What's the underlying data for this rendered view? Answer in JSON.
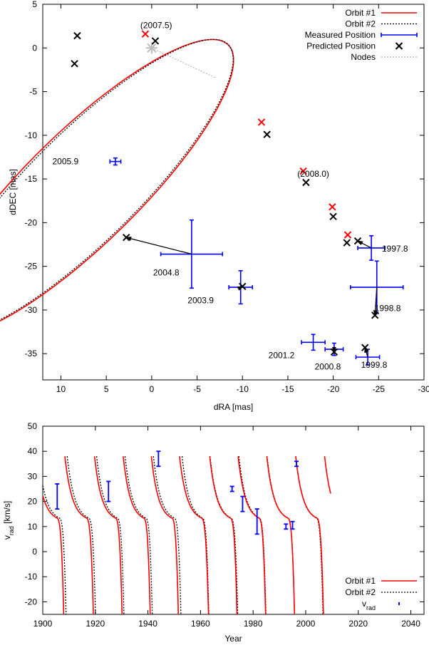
{
  "chart_data": [
    {
      "type": "line",
      "xlabel": "dRA [mas]",
      "ylabel": "dDEC [mas]",
      "xlim": [
        12,
        -30
      ],
      "ylim": [
        -38,
        5
      ],
      "xticks": [
        10,
        5,
        0,
        -5,
        -10,
        -15,
        -20,
        -25,
        -30
      ],
      "xtick_labels": [
        "10",
        "5",
        "0",
        "-5",
        "-10",
        "-15",
        "-20",
        "-25",
        "-30"
      ],
      "yticks": [
        5,
        0,
        -5,
        -10,
        -15,
        -20,
        -25,
        -30,
        -35
      ],
      "ytick_labels": [
        "5",
        "0",
        "-5",
        "-10",
        "-15",
        "-20",
        "-25",
        "-30",
        "-35"
      ],
      "legend_position": "top-right",
      "legend": [
        {
          "label": "Orbit #1",
          "style": "solid",
          "color": "#ff0000"
        },
        {
          "label": "Orbit #2",
          "style": "dotted",
          "color": "#000000"
        },
        {
          "label": "Measured Position",
          "style": "errorbar",
          "color": "#0000ff"
        },
        {
          "label": "Predicted Position",
          "style": "x-marker",
          "color": "#000000"
        },
        {
          "label": "Nodes",
          "style": "dotted",
          "color": "#aaaaaa"
        }
      ],
      "orbit1_ellipse": {
        "center": [
          7.6,
          -16.0
        ],
        "semi_major": 22.9,
        "semi_minor": 6.3,
        "angle_deg": -45.7
      },
      "orbit2_ellipse": {
        "center": [
          7.45,
          -15.9
        ],
        "semi_major": 22.75,
        "semi_minor": 6.1,
        "angle_deg": -45.9
      },
      "nodes_line": [
        [
          0.0,
          0.0
        ],
        [
          -7.0,
          -3.4
        ]
      ],
      "measured_positions": [
        {
          "label": "1997.8",
          "x": -24.2,
          "y": -22.9,
          "xerr": 1.5,
          "yerr": 1.4
        },
        {
          "label": "1998.8",
          "x": -24.8,
          "y": -27.4,
          "xerr": 2.9,
          "yerr": 3.0
        },
        {
          "label": "1999.8",
          "x": -23.8,
          "y": -35.4,
          "xerr": 1.3,
          "yerr": 0.9
        },
        {
          "label": "2000.8",
          "x": -20.1,
          "y": -34.5,
          "xerr": 1.0,
          "yerr": 0.7
        },
        {
          "label": "2001.2",
          "x": -17.8,
          "y": -33.7,
          "xerr": 1.3,
          "yerr": 0.9
        },
        {
          "label": "2003.9",
          "x": -9.8,
          "y": -27.4,
          "xerr": 1.3,
          "yerr": 1.9
        },
        {
          "label": "2004.8",
          "x": -4.4,
          "y": -23.6,
          "xerr": 3.4,
          "yerr": 3.9
        },
        {
          "label": "2005.9",
          "x": 4.0,
          "y": -13.0,
          "xerr": 0.6,
          "yerr": 0.4
        }
      ],
      "predicted_black": [
        {
          "x": -22.7,
          "y": -22.1
        },
        {
          "x": -24.6,
          "y": -30.6
        },
        {
          "x": -23.5,
          "y": -34.3
        },
        {
          "x": -20.1,
          "y": -34.8
        },
        {
          "x": -10.0,
          "y": -27.3
        },
        {
          "x": 2.8,
          "y": -21.7
        },
        {
          "x": 8.5,
          "y": -1.8
        },
        {
          "x": 8.2,
          "y": 1.4
        },
        {
          "x": -0.4,
          "y": 0.8
        },
        {
          "x": -12.7,
          "y": -9.9
        },
        {
          "x": -17.0,
          "y": -15.4
        },
        {
          "x": -20.0,
          "y": -19.3
        },
        {
          "x": -21.5,
          "y": -22.3
        }
      ],
      "predicted_red": [
        {
          "x": 0.7,
          "y": 1.6
        },
        {
          "x": -12.1,
          "y": -8.5
        },
        {
          "x": -16.7,
          "y": -14.1
        },
        {
          "x": -19.9,
          "y": -18.2
        },
        {
          "x": -21.6,
          "y": -21.4
        }
      ],
      "annotations": [
        {
          "text": "1997.8",
          "x": -26.8,
          "y": -23.0
        },
        {
          "text": "1998.8",
          "x": -26.0,
          "y": -29.8
        },
        {
          "text": "1999.8",
          "x": -24.5,
          "y": -36.3
        },
        {
          "text": "2000.8",
          "x": -19.4,
          "y": -36.5
        },
        {
          "text": "2001.2",
          "x": -14.3,
          "y": -35.2
        },
        {
          "text": "2003.9",
          "x": -5.4,
          "y": -28.9
        },
        {
          "text": "2004.8",
          "x": -1.6,
          "y": -25.7
        },
        {
          "text": "2005.9",
          "x": 9.5,
          "y": -13.0
        },
        {
          "text": "(2007.5)",
          "x": -0.5,
          "y": 2.6
        },
        {
          "text": "(2008.0)",
          "x": -17.8,
          "y": -14.4
        }
      ]
    },
    {
      "type": "line",
      "xlabel": "Year",
      "ylabel": "vrad [km/s]",
      "ylabel_main": "v",
      "ylabel_sub": "rad",
      "ylabel_unit": " [km/s]",
      "xlim": [
        1900,
        2045
      ],
      "ylim": [
        -25,
        50
      ],
      "xticks": [
        1900,
        1920,
        1940,
        1960,
        1980,
        2000,
        2020,
        2040
      ],
      "xtick_labels": [
        "1900",
        "1920",
        "1940",
        "1960",
        "1980",
        "2000",
        "2020",
        "2040"
      ],
      "yticks": [
        -20,
        -10,
        0,
        10,
        20,
        30,
        40,
        50
      ],
      "ytick_labels": [
        "-20",
        "-10",
        "0",
        "10",
        "20",
        "30",
        "40",
        "50"
      ],
      "legend_position": "bottom-right",
      "legend": [
        {
          "label": "Orbit #1",
          "style": "solid",
          "color": "#ff0000"
        },
        {
          "label": "Orbit #2",
          "style": "dotted",
          "color": "#000000"
        },
        {
          "label": "vrad",
          "label_main": "v",
          "label_sub": "rad",
          "style": "errorbar",
          "color": "#0000ff"
        }
      ],
      "orbit1_periastron_years": [
        1908.4,
        1919.7,
        1930.6,
        1941.3,
        1952.0,
        1963.5,
        1974.3,
        1985.2,
        1996.2,
        2007.2
      ],
      "orbit1_end_year": 2009.5,
      "orbit1_period_yr": 10.9,
      "orbit2_periastron_years": [
        1909.3,
        1920.5,
        1931.3,
        1942.1,
        1953.0,
        1963.6,
        1974.6,
        1985.3,
        1996.2,
        2007.0
      ],
      "radial_velocities": [
        {
          "year": 1905.5,
          "v": 22.0,
          "err": 5.0
        },
        {
          "year": 1925.0,
          "v": 24.0,
          "err": 4.0
        },
        {
          "year": 1944.0,
          "v": 37.0,
          "err": 3.0
        },
        {
          "year": 1972.0,
          "v": 25.0,
          "err": 1.0
        },
        {
          "year": 1976.0,
          "v": 19.0,
          "err": 3.0
        },
        {
          "year": 1981.5,
          "v": 12.0,
          "err": 5.0
        },
        {
          "year": 1992.5,
          "v": 10.0,
          "err": 1.0
        },
        {
          "year": 1995.0,
          "v": 10.5,
          "err": 1.5
        },
        {
          "year": 1996.5,
          "v": 35.0,
          "err": 1.0
        }
      ]
    }
  ]
}
